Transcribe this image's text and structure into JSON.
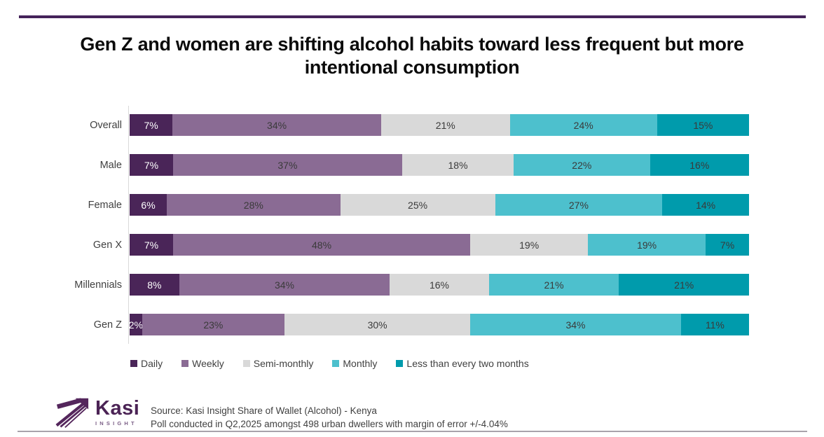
{
  "header": {
    "title_line1": "Gen Z and women are shifting alcohol habits toward less frequent but more",
    "title_line2": "intentional consumption"
  },
  "chart_data": {
    "type": "bar",
    "stacked": true,
    "orientation": "horizontal",
    "title": "Gen Z and women are shifting alcohol habits toward less frequent but more intentional consumption",
    "categories": [
      "Overall",
      "Male",
      "Female",
      "Gen X",
      "Millennials",
      "Gen Z"
    ],
    "series": [
      {
        "name": "Daily",
        "color": "#4A2558",
        "values": [
          7,
          7,
          6,
          7,
          8,
          2
        ]
      },
      {
        "name": "Weekly",
        "color": "#8A6B94",
        "values": [
          34,
          37,
          28,
          48,
          34,
          23
        ]
      },
      {
        "name": "Semi-monthly",
        "color": "#D9D9D9",
        "values": [
          21,
          18,
          25,
          19,
          16,
          30
        ]
      },
      {
        "name": "Monthly",
        "color": "#4DC0CD",
        "values": [
          24,
          22,
          27,
          19,
          21,
          34
        ]
      },
      {
        "name": "Less than every two months",
        "color": "#009BAC",
        "values": [
          15,
          16,
          14,
          7,
          21,
          11
        ]
      }
    ],
    "value_suffix": "%",
    "xlim": [
      0,
      100
    ],
    "grid": false,
    "legend_position": "bottom"
  },
  "footer": {
    "logo_text": "Kasi",
    "logo_subtext": "INSIGHT",
    "source_line1": "Source: Kasi Insight Share of Wallet (Alcohol) - Kenya",
    "source_line2": "Poll conducted in Q2,2025 amongst  498 urban dwellers with margin of error +/-4.04%"
  },
  "colors": {
    "top_rule": "#44235A",
    "bottom_rule": "#A8A3AB",
    "brand_purple": "#4B2355",
    "text": "#404040"
  }
}
